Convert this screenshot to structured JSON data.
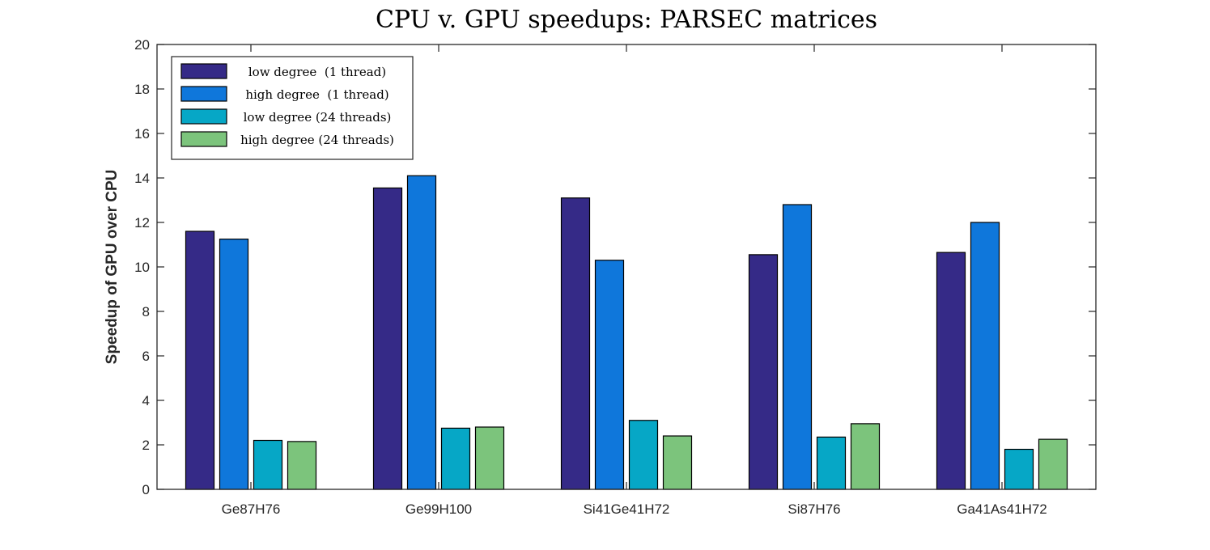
{
  "chart_data": {
    "type": "bar",
    "title": "CPU v. GPU speedups: PARSEC matrices",
    "xlabel": "",
    "ylabel": "Speedup of GPU over CPU",
    "ylim": [
      0,
      20
    ],
    "yticks": [
      0,
      2,
      4,
      6,
      8,
      10,
      12,
      14,
      16,
      18,
      20
    ],
    "categories": [
      "Ge87H76",
      "Ge99H100",
      "Si41Ge41H72",
      "Si87H76",
      "Ga41As41H72"
    ],
    "series": [
      {
        "name": "low degree  (1 thread)",
        "color": "#352a87",
        "values": [
          11.6,
          13.55,
          13.1,
          10.55,
          10.65
        ]
      },
      {
        "name": "high degree  (1 thread)",
        "color": "#0f77db",
        "values": [
          11.25,
          14.1,
          10.3,
          12.8,
          12.0
        ]
      },
      {
        "name": "low degree (24 threads)",
        "color": "#06a7c6",
        "values": [
          2.2,
          2.75,
          3.1,
          2.35,
          1.8
        ]
      },
      {
        "name": "high degree (24 threads)",
        "color": "#7cc47c",
        "values": [
          2.15,
          2.8,
          2.4,
          2.95,
          2.25
        ]
      }
    ],
    "grid": false,
    "legend_position": "top-left"
  }
}
